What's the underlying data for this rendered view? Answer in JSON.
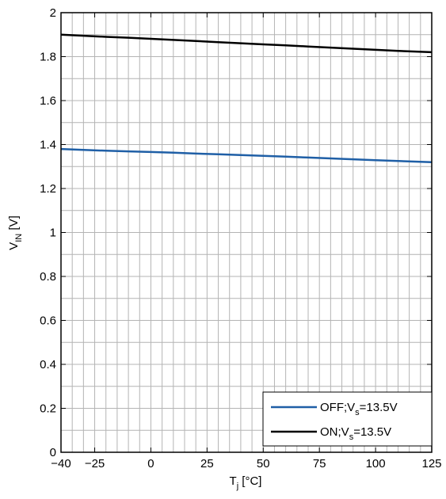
{
  "chart_data": {
    "type": "line",
    "xlabel": {
      "main": "T",
      "sub": "j",
      "suffix": " [°C]"
    },
    "ylabel": {
      "main": "V",
      "sub": "IN",
      "suffix": " [V]"
    },
    "xlim": [
      -40,
      125
    ],
    "ylim": [
      0,
      2
    ],
    "x_ticks": [
      -40,
      -25,
      0,
      25,
      50,
      75,
      100,
      125
    ],
    "x_tick_labels": [
      "−40",
      "−25",
      "0",
      "25",
      "50",
      "75",
      "100",
      "125"
    ],
    "y_ticks": [
      0,
      0.2,
      0.4,
      0.6,
      0.8,
      1,
      1.2,
      1.4,
      1.6,
      1.8,
      2
    ],
    "y_tick_labels": [
      "0",
      "0.2",
      "0.4",
      "0.6",
      "0.8",
      "1",
      "1.2",
      "1.4",
      "1.6",
      "1.8",
      "2"
    ],
    "grid": true,
    "legend_position": "bottom-right",
    "series": [
      {
        "name": "OFF;Vs=13.5V",
        "legend": {
          "main": "OFF;V",
          "sub": "s",
          "suffix": "=13.5V"
        },
        "color": "#1f5fa6",
        "x": [
          -40,
          -30,
          -20,
          -10,
          0,
          10,
          20,
          30,
          40,
          50,
          60,
          70,
          80,
          90,
          100,
          110,
          125
        ],
        "y": [
          1.38,
          1.376,
          1.372,
          1.369,
          1.366,
          1.363,
          1.359,
          1.356,
          1.352,
          1.349,
          1.345,
          1.341,
          1.337,
          1.333,
          1.329,
          1.325,
          1.32
        ]
      },
      {
        "name": "ON;Vs=13.5V",
        "legend": {
          "main": "ON;V",
          "sub": "s",
          "suffix": "=13.5V"
        },
        "color": "#000000",
        "x": [
          -40,
          -30,
          -20,
          -10,
          0,
          10,
          20,
          30,
          40,
          50,
          60,
          70,
          80,
          90,
          100,
          110,
          125
        ],
        "y": [
          1.9,
          1.895,
          1.89,
          1.886,
          1.881,
          1.876,
          1.871,
          1.866,
          1.861,
          1.856,
          1.851,
          1.846,
          1.841,
          1.836,
          1.831,
          1.826,
          1.82
        ]
      }
    ]
  }
}
